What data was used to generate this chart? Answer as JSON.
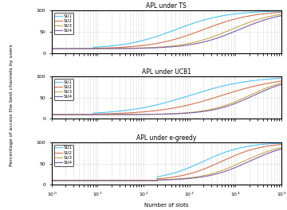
{
  "titles": [
    "APL under TS",
    "APL under UCB1",
    "APL under e-greedy"
  ],
  "xlabel": "Number of slots",
  "ylabel": "Percentage of access the best channels by users",
  "xlim": [
    1,
    100000
  ],
  "ylim": [
    0,
    100
  ],
  "yticks": [
    0,
    50,
    100
  ],
  "colors": {
    "SU1": "#4dc3f7",
    "SU2": "#d2724a",
    "SU3": "#c8a84b",
    "SU4": "#7b5ea7"
  },
  "legend_labels": [
    "SU1",
    "SU2",
    "SU3",
    "SU4"
  ],
  "ts": {
    "su1": {
      "x_mid": 500,
      "steepness": 1.8,
      "flat_until": 8
    },
    "su2": {
      "x_mid": 2000,
      "steepness": 1.8,
      "flat_until": 8
    },
    "su3": {
      "x_mid": 8000,
      "steepness": 2.0,
      "flat_until": 8
    },
    "su4": {
      "x_mid": 12000,
      "steepness": 2.0,
      "flat_until": 8
    }
  },
  "ucb1": {
    "su1": {
      "x_mid": 1000,
      "steepness": 1.5,
      "flat_until": 8
    },
    "su2": {
      "x_mid": 5000,
      "steepness": 1.5,
      "flat_until": 8
    },
    "su3": {
      "x_mid": 20000,
      "steepness": 2.2,
      "flat_until": 8
    },
    "su4": {
      "x_mid": 25000,
      "steepness": 2.2,
      "flat_until": 8
    }
  },
  "egreedy": {
    "su1": {
      "x_mid": 2000,
      "steepness": 2.2,
      "flat_until": 200
    },
    "su2": {
      "x_mid": 5000,
      "steepness": 2.2,
      "flat_until": 200
    },
    "su3": {
      "x_mid": 15000,
      "steepness": 2.2,
      "flat_until": 200
    },
    "su4": {
      "x_mid": 20000,
      "steepness": 2.2,
      "flat_until": 200
    }
  },
  "start_val": 10,
  "end_val": 100
}
